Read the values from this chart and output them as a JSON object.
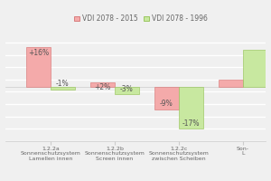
{
  "categories": [
    "1.2.2a\nSonnenschutzsystem\nLamellen innen",
    "1.2.2b\nSonnenschutzsystem\nScreen innen",
    "1.2.2c\nSonnenschutzsystem\nzwischen Scheiben",
    "Son-\nL"
  ],
  "series": [
    {
      "name": "VDI 2078 - 2015",
      "values": [
        16,
        2,
        -9,
        3
      ],
      "color": "#f4aaaa",
      "edge_color": "#d47070"
    },
    {
      "name": "VDI 2078 - 1996",
      "values": [
        -1,
        -3,
        -17,
        15
      ],
      "color": "#c8e8a0",
      "edge_color": "#90c050"
    }
  ],
  "labels_2015": [
    "+16%",
    "+2%",
    "-9%",
    ""
  ],
  "labels_1996": [
    "-1%",
    "-3%",
    "-17%",
    ""
  ],
  "bar_width": 0.38,
  "ylim": [
    -22,
    22
  ],
  "background_color": "#f0f0f0",
  "font_size_bar_labels": 5.5,
  "font_size_ticks": 4.5,
  "font_size_legend": 5.5,
  "label_color": "#555555",
  "tick_color": "#666666",
  "grid_line_color": "#ffffff",
  "spine_color": "#cccccc"
}
